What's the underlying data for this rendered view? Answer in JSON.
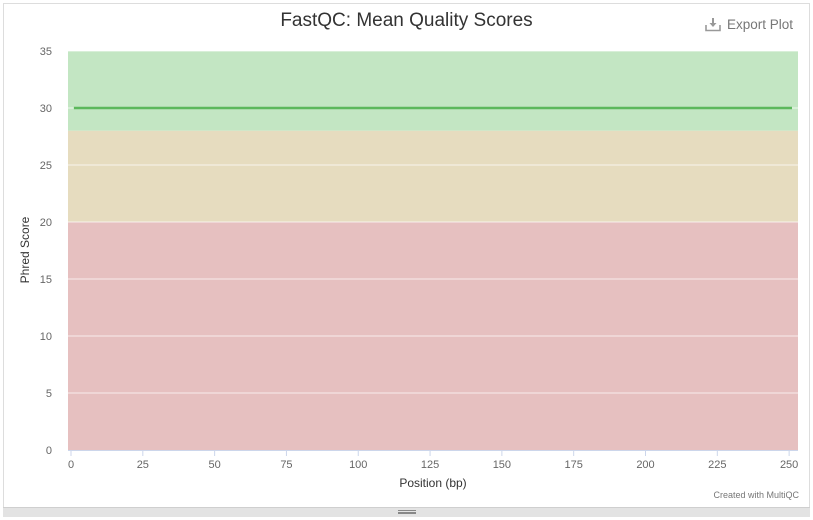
{
  "chart_data": {
    "type": "line",
    "title": "FastQC: Mean Quality Scores",
    "xlabel": "Position (bp)",
    "ylabel": "Phred Score",
    "xlim": [
      0,
      251
    ],
    "ylim": [
      0,
      35
    ],
    "x_ticks": [
      0,
      25,
      50,
      75,
      100,
      125,
      150,
      175,
      200,
      225,
      250
    ],
    "y_ticks": [
      0,
      5,
      10,
      15,
      20,
      25,
      30,
      35
    ],
    "bands": [
      {
        "from": 28,
        "to": 35,
        "color": "#c3e6c3"
      },
      {
        "from": 20,
        "to": 28,
        "color": "#e6dcbf"
      },
      {
        "from": 0,
        "to": 20,
        "color": "#e6c0c0"
      }
    ],
    "series": [
      {
        "color": "#5cb85c",
        "x": [
          1,
          251
        ],
        "y": [
          30,
          30
        ]
      }
    ],
    "grid": true
  },
  "toolbar": {
    "export_label": "Export Plot"
  },
  "credit": "Created with MultiQC",
  "colors": {
    "line": "#5cb85c",
    "axis": "#ccd6eb",
    "grid": "#e6e6e6"
  }
}
